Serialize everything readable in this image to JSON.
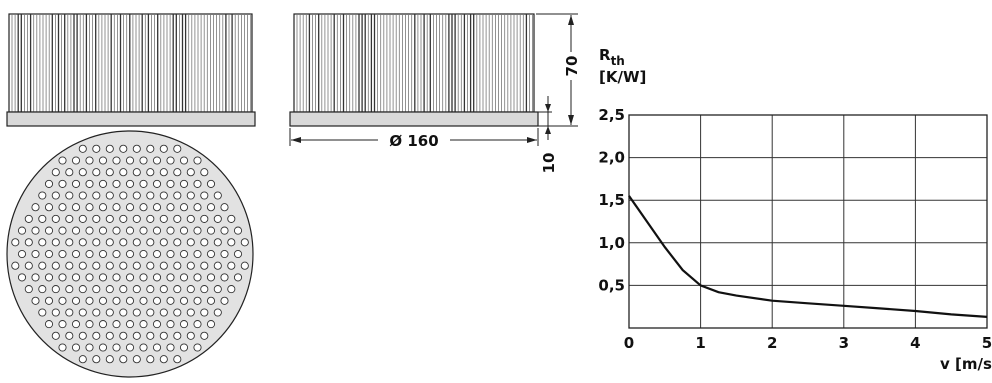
{
  "drawing": {
    "dimension_height": "70",
    "dimension_base": "10",
    "dimension_diameter": "Ø 160"
  },
  "chart_data": {
    "type": "line",
    "title": "",
    "ylabel_symbol": "R",
    "ylabel_subscript": "th",
    "ylabel_unit": "[K/W]",
    "xlabel": "v [m/s]",
    "xlim": [
      0,
      5
    ],
    "ylim": [
      0,
      2.5
    ],
    "x_ticks": [
      0,
      1,
      2,
      3,
      4,
      5
    ],
    "x_tick_labels": [
      "0",
      "1",
      "2",
      "3",
      "4",
      "5"
    ],
    "y_ticks": [
      0.5,
      1.0,
      1.5,
      2.0,
      2.5
    ],
    "y_tick_labels": [
      "0,5",
      "1,0",
      "1,5",
      "2,0",
      "2,5"
    ],
    "grid": true,
    "series": [
      {
        "x": [
          0,
          0.25,
          0.5,
          0.75,
          1,
          1.25,
          1.5,
          2,
          2.5,
          3,
          3.5,
          4,
          4.5,
          5
        ],
        "y": [
          1.55,
          1.25,
          0.95,
          0.68,
          0.5,
          0.42,
          0.38,
          0.32,
          0.29,
          0.26,
          0.23,
          0.2,
          0.16,
          0.13
        ]
      }
    ]
  }
}
